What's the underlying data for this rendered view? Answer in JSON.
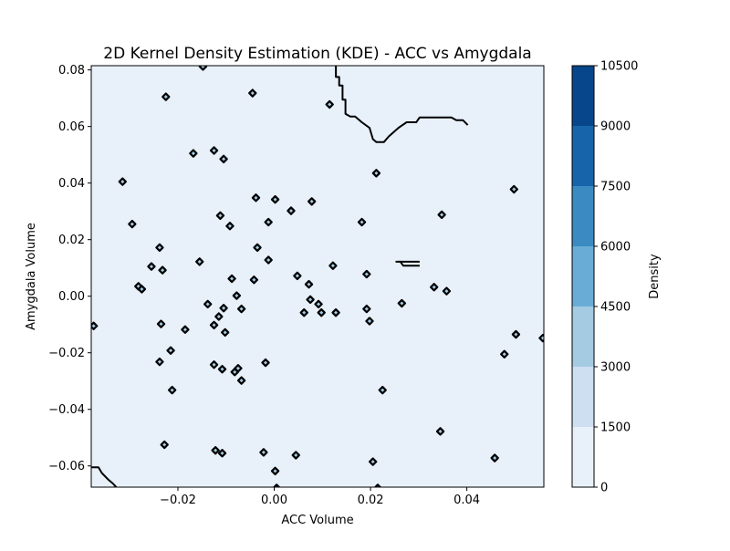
{
  "chart_data": {
    "type": "heatmap",
    "title": "2D Kernel Density Estimation (KDE) - ACC vs Amygdala",
    "xlabel": "ACC Volume",
    "ylabel": "Amygdala Volume",
    "xlim": [
      -0.038,
      0.056
    ],
    "ylim": [
      -0.0675,
      0.0815
    ],
    "x_ticks": [
      -0.02,
      0.0,
      0.02,
      0.04
    ],
    "x_tick_labels": [
      "−0.02",
      "0.00",
      "0.02",
      "0.04"
    ],
    "y_ticks": [
      -0.06,
      -0.04,
      -0.02,
      0.0,
      0.02,
      0.04,
      0.06,
      0.08
    ],
    "y_tick_labels": [
      "−0.06",
      "−0.04",
      "−0.02",
      "0.00",
      "0.02",
      "0.04",
      "0.06",
      "0.08"
    ],
    "grid": false,
    "colorbar": {
      "label": "Density",
      "levels": [
        0,
        1500,
        3000,
        4500,
        6000,
        7500,
        9000,
        10500
      ],
      "tick_labels": [
        "0",
        "1500",
        "3000",
        "4500",
        "6000",
        "7500",
        "9000",
        "10500"
      ],
      "colors": [
        "#e8f1fa",
        "#cddff1",
        "#a4cbe2",
        "#69acd5",
        "#3b8bc2",
        "#1764ab",
        "#08468b"
      ]
    },
    "background_level_color": "#e8f1fa",
    "contour_color": "#000000",
    "peaks": [
      {
        "x": -0.0375,
        "y": -0.0105
      },
      {
        "x": -0.0315,
        "y": 0.0405
      },
      {
        "x": -0.0295,
        "y": 0.0255
      },
      {
        "x": -0.0282,
        "y": 0.0035
      },
      {
        "x": -0.0275,
        "y": 0.0025
      },
      {
        "x": -0.0255,
        "y": 0.0105
      },
      {
        "x": -0.0238,
        "y": 0.0172
      },
      {
        "x": -0.0232,
        "y": 0.0092
      },
      {
        "x": -0.0235,
        "y": -0.0098
      },
      {
        "x": -0.0238,
        "y": -0.0232
      },
      {
        "x": -0.0228,
        "y": -0.0525
      },
      {
        "x": -0.0225,
        "y": 0.0705
      },
      {
        "x": -0.0215,
        "y": -0.0192
      },
      {
        "x": -0.0212,
        "y": -0.0332
      },
      {
        "x": -0.0185,
        "y": -0.0118
      },
      {
        "x": -0.0168,
        "y": 0.0505
      },
      {
        "x": -0.0155,
        "y": 0.0122
      },
      {
        "x": -0.0148,
        "y": 0.0812
      },
      {
        "x": -0.0138,
        "y": -0.0028
      },
      {
        "x": -0.0125,
        "y": 0.0515
      },
      {
        "x": -0.0125,
        "y": -0.0242
      },
      {
        "x": -0.0122,
        "y": -0.0545
      },
      {
        "x": -0.0125,
        "y": -0.0102
      },
      {
        "x": -0.0115,
        "y": -0.0072
      },
      {
        "x": -0.0112,
        "y": 0.0285
      },
      {
        "x": -0.0108,
        "y": -0.0258
      },
      {
        "x": -0.0108,
        "y": -0.0555
      },
      {
        "x": -0.0105,
        "y": 0.0485
      },
      {
        "x": -0.0102,
        "y": -0.0128
      },
      {
        "x": -0.0105,
        "y": -0.0042
      },
      {
        "x": -0.0092,
        "y": 0.0248
      },
      {
        "x": -0.0088,
        "y": 0.0062
      },
      {
        "x": -0.0082,
        "y": -0.0268
      },
      {
        "x": -0.0078,
        "y": 0.0002
      },
      {
        "x": -0.0075,
        "y": -0.0255
      },
      {
        "x": -0.0068,
        "y": -0.0298
      },
      {
        "x": -0.0068,
        "y": -0.0045
      },
      {
        "x": -0.0045,
        "y": 0.0718
      },
      {
        "x": -0.0035,
        "y": 0.0172
      },
      {
        "x": -0.0038,
        "y": 0.0348
      },
      {
        "x": -0.0042,
        "y": 0.0058
      },
      {
        "x": -0.0022,
        "y": -0.0552
      },
      {
        "x": -0.0018,
        "y": -0.0235
      },
      {
        "x": -0.0012,
        "y": 0.0262
      },
      {
        "x": -0.0012,
        "y": 0.0128
      },
      {
        "x": 0.0002,
        "y": 0.0342
      },
      {
        "x": 0.0002,
        "y": -0.0618
      },
      {
        "x": 0.0005,
        "y": -0.0678
      },
      {
        "x": 0.0035,
        "y": 0.0302
      },
      {
        "x": 0.0045,
        "y": -0.0562
      },
      {
        "x": 0.0048,
        "y": 0.0072
      },
      {
        "x": 0.0062,
        "y": -0.0058
      },
      {
        "x": 0.0072,
        "y": 0.0042
      },
      {
        "x": 0.0075,
        "y": -0.0012
      },
      {
        "x": 0.0078,
        "y": 0.0335
      },
      {
        "x": 0.0092,
        "y": -0.0028
      },
      {
        "x": 0.0098,
        "y": -0.0058
      },
      {
        "x": 0.0115,
        "y": 0.0678
      },
      {
        "x": 0.0122,
        "y": 0.0108
      },
      {
        "x": 0.0128,
        "y": -0.0058
      },
      {
        "x": 0.0182,
        "y": 0.0262
      },
      {
        "x": 0.0192,
        "y": 0.0078
      },
      {
        "x": 0.0192,
        "y": -0.0045
      },
      {
        "x": 0.0198,
        "y": -0.0088
      },
      {
        "x": 0.0205,
        "y": -0.0585
      },
      {
        "x": 0.0212,
        "y": 0.0435
      },
      {
        "x": 0.0215,
        "y": -0.0678
      },
      {
        "x": 0.0225,
        "y": -0.0332
      },
      {
        "x": 0.0265,
        "y": -0.0025
      },
      {
        "x": 0.0332,
        "y": 0.0032
      },
      {
        "x": 0.0345,
        "y": -0.0478
      },
      {
        "x": 0.0348,
        "y": 0.0288
      },
      {
        "x": 0.0358,
        "y": 0.0018
      },
      {
        "x": 0.0458,
        "y": -0.0572
      },
      {
        "x": 0.0478,
        "y": -0.0205
      },
      {
        "x": 0.0498,
        "y": 0.0378
      },
      {
        "x": 0.0502,
        "y": -0.0135
      },
      {
        "x": 0.0558,
        "y": -0.0148
      }
    ],
    "boundary_contours": [
      {
        "points": [
          [
            0.0128,
            0.0815
          ],
          [
            0.0128,
            0.0775
          ],
          [
            0.0135,
            0.0775
          ],
          [
            0.0135,
            0.0745
          ],
          [
            0.0142,
            0.0745
          ],
          [
            0.0142,
            0.0695
          ],
          [
            0.0148,
            0.0695
          ],
          [
            0.0148,
            0.0645
          ],
          [
            0.0158,
            0.0635
          ],
          [
            0.0168,
            0.0635
          ],
          [
            0.0182,
            0.0615
          ],
          [
            0.0198,
            0.0595
          ],
          [
            0.0205,
            0.0555
          ],
          [
            0.0212,
            0.0545
          ],
          [
            0.0228,
            0.0545
          ],
          [
            0.0238,
            0.0565
          ],
          [
            0.0258,
            0.0595
          ],
          [
            0.0275,
            0.0615
          ],
          [
            0.0295,
            0.0615
          ],
          [
            0.0302,
            0.0632
          ],
          [
            0.0368,
            0.0632
          ],
          [
            0.0378,
            0.0622
          ],
          [
            0.0392,
            0.0622
          ],
          [
            0.0402,
            0.0605
          ]
        ]
      },
      {
        "points": [
          [
            0.0252,
            0.0122
          ],
          [
            0.0262,
            0.0122
          ],
          [
            0.0268,
            0.0108
          ],
          [
            0.0302,
            0.0108
          ]
        ]
      },
      {
        "points": [
          [
            0.0258,
            0.0122
          ],
          [
            0.0302,
            0.0122
          ]
        ]
      },
      {
        "points": [
          [
            -0.038,
            -0.0605
          ],
          [
            -0.0365,
            -0.0605
          ],
          [
            -0.0358,
            -0.0625
          ],
          [
            -0.0345,
            -0.0648
          ],
          [
            -0.0335,
            -0.0662
          ],
          [
            -0.0328,
            -0.0675
          ]
        ]
      }
    ]
  }
}
